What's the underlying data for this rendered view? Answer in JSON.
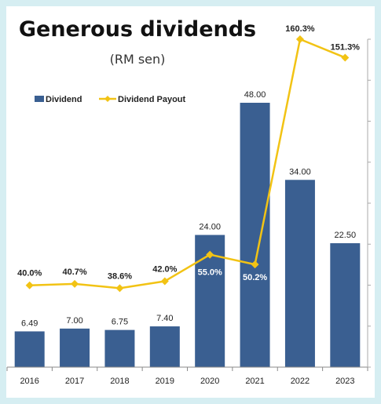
{
  "chart_data": {
    "type": "bar+line",
    "title": "Generous dividends",
    "subtitle": "(RM sen)",
    "categories": [
      "2016",
      "2017",
      "2018",
      "2019",
      "2020",
      "2021",
      "2022",
      "2023"
    ],
    "series": [
      {
        "name": "Dividend",
        "type": "bar",
        "axis": "left",
        "values": [
          6.49,
          7.0,
          6.75,
          7.4,
          24.0,
          48.0,
          34.0,
          22.5
        ],
        "labels": [
          "6.49",
          "7.00",
          "6.75",
          "7.40",
          "24.00",
          "48.00",
          "34.00",
          "22.50"
        ]
      },
      {
        "name": "Dividend Payout",
        "type": "line",
        "axis": "right",
        "values": [
          40.0,
          40.7,
          38.6,
          42.0,
          55.0,
          50.2,
          160.3,
          151.3
        ],
        "labels": [
          "40.0%",
          "40.7%",
          "38.6%",
          "42.0%",
          "55.0%",
          "50.2%",
          "160.3%",
          "151.3%"
        ]
      }
    ],
    "ylim_left": [
      0,
      60
    ],
    "ylim_right": [
      0,
      180
    ],
    "legend_placement": "top-left",
    "grid": false,
    "colors": {
      "bar": "#3a5f91",
      "line": "#f2c314",
      "background": "#d6eef2"
    }
  }
}
